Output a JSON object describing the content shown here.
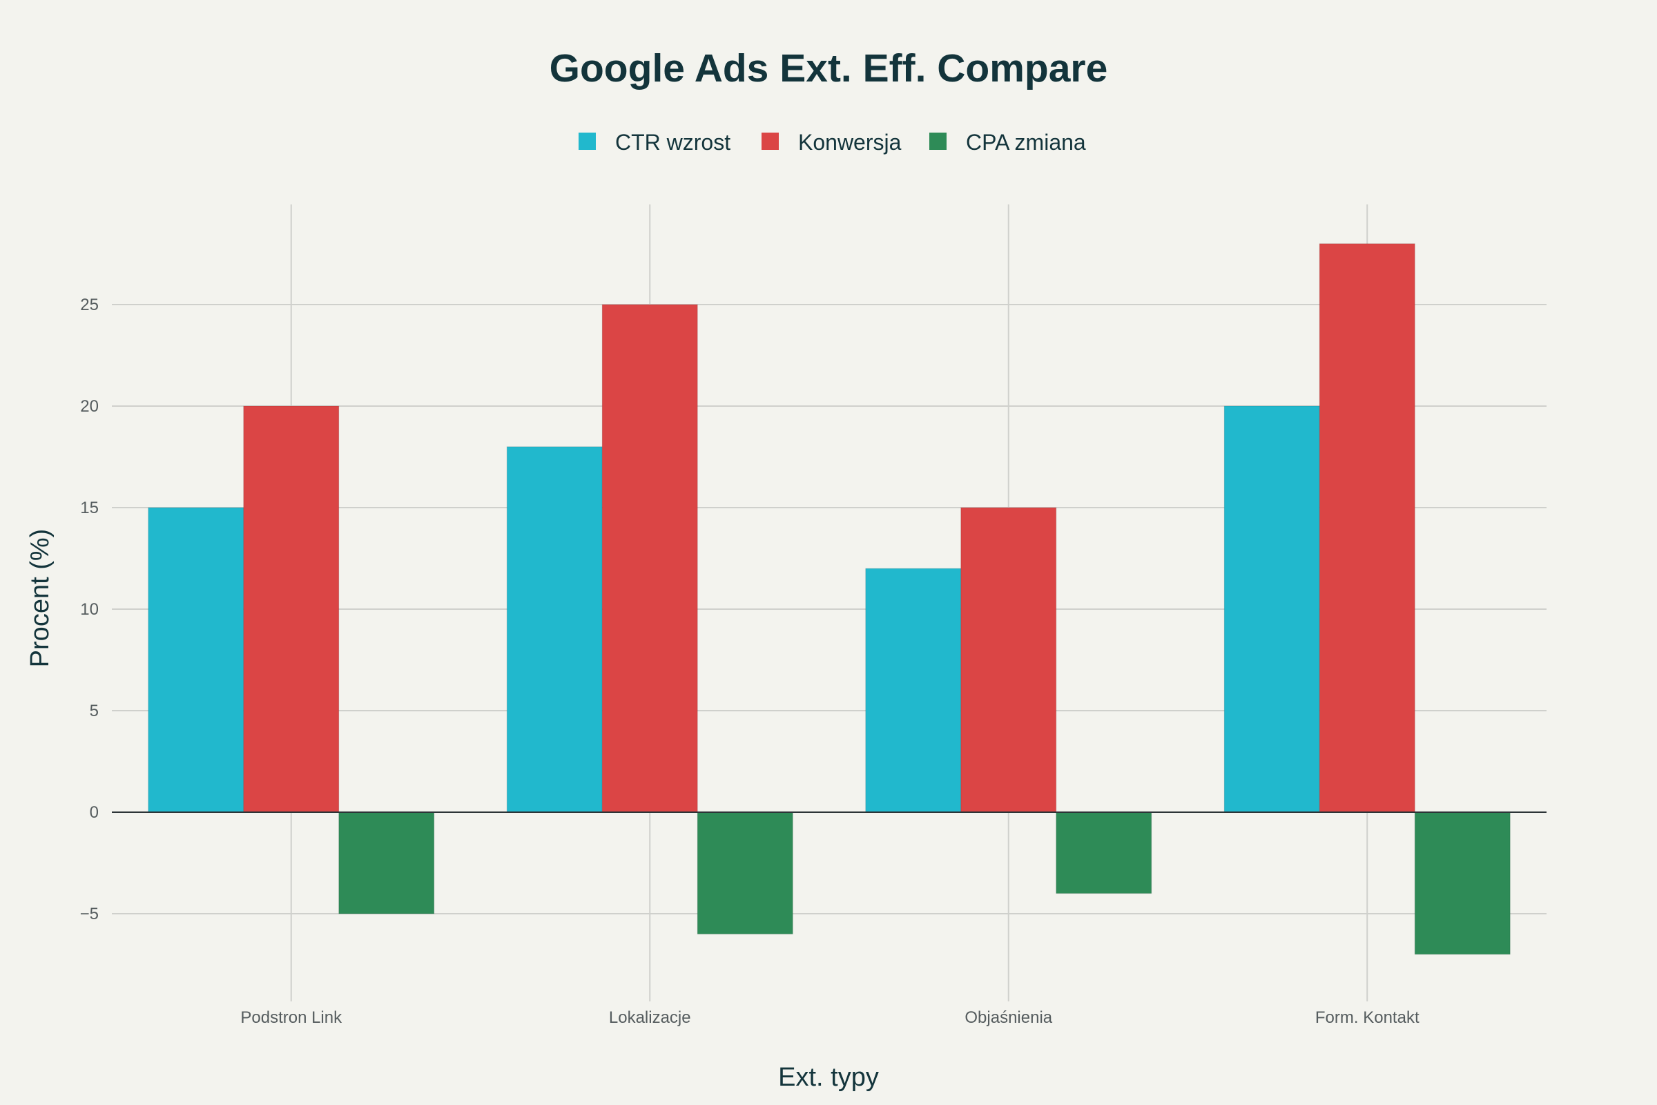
{
  "chart_data": {
    "type": "bar",
    "title": "Google Ads Ext. Eff. Compare",
    "xlabel": "Ext. typy",
    "ylabel": "Procent (%)",
    "categories": [
      "Podstron Link",
      "Lokalizacje",
      "Objaśnienia",
      "Form. Kontakt"
    ],
    "series": [
      {
        "name": "CTR wzrost",
        "color": "#21b8cd",
        "values": [
          15,
          18,
          12,
          20
        ]
      },
      {
        "name": "Konwersja",
        "color": "#db4545",
        "values": [
          20,
          25,
          15,
          28
        ]
      },
      {
        "name": "CPA zmiana",
        "color": "#2e8b57",
        "values": [
          -5,
          -6,
          -4,
          -7
        ]
      }
    ],
    "ylim": [
      -9.5,
      30
    ],
    "yticks": [
      -5,
      0,
      5,
      10,
      15,
      20,
      25
    ],
    "ytick_labels": [
      "−5",
      "0",
      "5",
      "10",
      "15",
      "20",
      "25"
    ],
    "grid": true,
    "legend_position": "top-center"
  }
}
